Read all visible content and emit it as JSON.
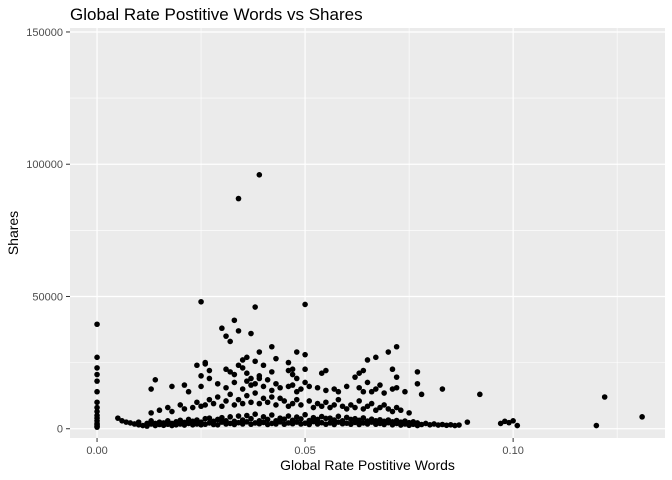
{
  "chart_data": {
    "type": "scatter",
    "title": "Global Rate Postitive Words vs Shares",
    "xlabel": "Global Rate Postitive Words",
    "ylabel": "Shares",
    "xlim": [
      -0.0065,
      0.1365
    ],
    "ylim": [
      -3500,
      151500
    ],
    "x_ticks": [
      0.0,
      0.05,
      0.1
    ],
    "x_tick_labels": [
      "0.00",
      "0.05",
      "0.10"
    ],
    "y_ticks": [
      0,
      50000,
      100000,
      150000
    ],
    "y_tick_labels": [
      "0",
      "50000",
      "100000",
      "150000"
    ],
    "grid": true,
    "legend": "none",
    "colors": {
      "panel": "#ebebeb",
      "grid": "#ffffff",
      "point": "#000000"
    },
    "x": [
      0.0,
      0.0,
      0.0,
      0.0,
      0.0,
      0.0,
      0.0,
      0.0,
      0.0,
      0.0,
      0.0,
      0.0,
      0.0,
      0.0,
      0.0,
      0.0,
      0.005,
      0.006,
      0.007,
      0.008,
      0.009,
      0.01,
      0.01,
      0.011,
      0.012,
      0.012,
      0.013,
      0.013,
      0.014,
      0.014,
      0.015,
      0.015,
      0.016,
      0.016,
      0.017,
      0.017,
      0.018,
      0.018,
      0.019,
      0.019,
      0.02,
      0.02,
      0.021,
      0.021,
      0.022,
      0.022,
      0.023,
      0.023,
      0.024,
      0.024,
      0.025,
      0.025,
      0.026,
      0.026,
      0.027,
      0.027,
      0.028,
      0.028,
      0.029,
      0.029,
      0.03,
      0.03,
      0.031,
      0.031,
      0.032,
      0.032,
      0.033,
      0.033,
      0.034,
      0.034,
      0.035,
      0.035,
      0.036,
      0.036,
      0.037,
      0.037,
      0.038,
      0.038,
      0.039,
      0.039,
      0.04,
      0.04,
      0.041,
      0.041,
      0.042,
      0.042,
      0.043,
      0.043,
      0.044,
      0.044,
      0.045,
      0.045,
      0.046,
      0.046,
      0.047,
      0.047,
      0.048,
      0.048,
      0.049,
      0.049,
      0.05,
      0.05,
      0.051,
      0.051,
      0.052,
      0.052,
      0.053,
      0.053,
      0.054,
      0.054,
      0.055,
      0.055,
      0.056,
      0.056,
      0.057,
      0.057,
      0.058,
      0.058,
      0.059,
      0.059,
      0.06,
      0.06,
      0.061,
      0.061,
      0.062,
      0.062,
      0.063,
      0.063,
      0.064,
      0.064,
      0.065,
      0.065,
      0.066,
      0.066,
      0.067,
      0.067,
      0.068,
      0.068,
      0.069,
      0.069,
      0.07,
      0.07,
      0.071,
      0.071,
      0.072,
      0.072,
      0.073,
      0.073,
      0.074,
      0.074,
      0.075,
      0.075,
      0.076,
      0.076,
      0.077,
      0.077,
      0.078,
      0.079,
      0.08,
      0.081,
      0.082,
      0.083,
      0.084,
      0.085,
      0.086,
      0.087,
      0.013,
      0.015,
      0.017,
      0.018,
      0.02,
      0.021,
      0.023,
      0.024,
      0.025,
      0.026,
      0.027,
      0.028,
      0.029,
      0.03,
      0.031,
      0.032,
      0.033,
      0.034,
      0.035,
      0.036,
      0.037,
      0.038,
      0.039,
      0.04,
      0.041,
      0.042,
      0.043,
      0.044,
      0.045,
      0.046,
      0.047,
      0.048,
      0.049,
      0.051,
      0.052,
      0.053,
      0.054,
      0.055,
      0.056,
      0.057,
      0.058,
      0.059,
      0.06,
      0.061,
      0.062,
      0.063,
      0.064,
      0.065,
      0.066,
      0.067,
      0.068,
      0.069,
      0.07,
      0.071,
      0.072,
      0.073,
      0.075,
      0.013,
      0.014,
      0.018,
      0.021,
      0.022,
      0.025,
      0.027,
      0.029,
      0.031,
      0.033,
      0.035,
      0.036,
      0.037,
      0.038,
      0.039,
      0.04,
      0.041,
      0.042,
      0.043,
      0.044,
      0.046,
      0.047,
      0.048,
      0.049,
      0.05,
      0.051,
      0.053,
      0.055,
      0.057,
      0.058,
      0.06,
      0.063,
      0.064,
      0.065,
      0.066,
      0.067,
      0.068,
      0.069,
      0.071,
      0.072,
      0.074,
      0.077,
      0.024,
      0.025,
      0.026,
      0.03,
      0.031,
      0.032,
      0.033,
      0.034,
      0.035,
      0.036,
      0.037,
      0.038,
      0.038,
      0.039,
      0.04,
      0.042,
      0.043,
      0.046,
      0.047,
      0.048,
      0.05,
      0.054,
      0.055,
      0.064,
      0.065,
      0.067,
      0.07,
      0.072,
      0.077,
      0.083,
      0.025,
      0.026,
      0.027,
      0.031,
      0.032,
      0.033,
      0.034,
      0.035,
      0.036,
      0.037,
      0.039,
      0.042,
      0.046,
      0.047,
      0.048,
      0.05,
      0.062,
      0.063,
      0.071,
      0.072,
      0.034,
      0.039,
      0.05,
      0.078,
      0.089,
      0.092,
      0.097,
      0.098,
      0.099,
      0.1,
      0.101,
      0.12,
      0.122,
      0.131
    ],
    "y": [
      39500,
      27000,
      23000,
      20500,
      18000,
      14000,
      10000,
      8000,
      6500,
      5000,
      4000,
      3000,
      2000,
      1500,
      1000,
      600,
      4000,
      3000,
      2500,
      2200,
      1800,
      1500,
      2500,
      1200,
      2000,
      1000,
      1800,
      3000,
      2000,
      1200,
      2500,
      1600,
      2200,
      1300,
      3000,
      1700,
      2000,
      1200,
      2600,
      1500,
      1800,
      3200,
      2400,
      1400,
      2000,
      3500,
      1500,
      2800,
      1800,
      3300,
      1500,
      2500,
      3800,
      1700,
      2200,
      4000,
      1600,
      2800,
      3500,
      1500,
      2500,
      4200,
      1800,
      3000,
      2000,
      4500,
      1600,
      2800,
      2300,
      4800,
      1800,
      3300,
      2600,
      5000,
      1700,
      3800,
      2200,
      5500,
      1900,
      3000,
      2400,
      4500,
      1600,
      3500,
      2000,
      5200,
      1800,
      3000,
      2600,
      4000,
      1700,
      3600,
      2200,
      4800,
      1900,
      3200,
      2500,
      4400,
      1800,
      3700,
      2100,
      5300,
      1600,
      3100,
      2700,
      4200,
      1800,
      3500,
      2300,
      4600,
      1700,
      3900,
      2200,
      4000,
      1600,
      3300,
      2500,
      4700,
      1900,
      3000,
      2100,
      4300,
      1700,
      3500,
      2400,
      3800,
      1600,
      3200,
      2200,
      4100,
      1800,
      2900,
      2500,
      3600,
      1700,
      3000,
      2000,
      3400,
      1600,
      2800,
      2300,
      3300,
      1500,
      2600,
      2000,
      3100,
      1400,
      2500,
      1800,
      2900,
      1300,
      2300,
      1700,
      2600,
      1200,
      2200,
      1600,
      2000,
      1500,
      1800,
      1400,
      1600,
      1300,
      1500,
      1200,
      1400,
      6000,
      7000,
      8000,
      6500,
      9000,
      7500,
      8000,
      10000,
      8500,
      9000,
      11000,
      9500,
      12000,
      8500,
      10500,
      13000,
      9000,
      11000,
      9500,
      12500,
      10000,
      13500,
      9500,
      11500,
      10000,
      12000,
      9000,
      11500,
      10500,
      8500,
      9500,
      11000,
      9000,
      10500,
      8000,
      9500,
      8500,
      10000,
      8000,
      9000,
      11000,
      8500,
      7500,
      9000,
      8000,
      10500,
      7500,
      8500,
      9500,
      7000,
      8000,
      9000,
      7500,
      6500,
      8000,
      7000,
      6000,
      15000,
      18500,
      16000,
      16500,
      14000,
      16000,
      19000,
      17000,
      15500,
      17500,
      15000,
      18000,
      16500,
      17000,
      19000,
      16000,
      18500,
      14500,
      17000,
      15500,
      16000,
      16500,
      14000,
      15000,
      17500,
      16000,
      15500,
      14500,
      15000,
      14000,
      16000,
      15500,
      14000,
      17500,
      14000,
      15000,
      16500,
      13500,
      15000,
      15500,
      14000,
      17000,
      24000,
      48000,
      24500,
      38000,
      35000,
      33000,
      41000,
      37000,
      26000,
      27000,
      36000,
      25500,
      46000,
      29000,
      24000,
      31000,
      26500,
      25000,
      22500,
      29000,
      28000,
      21000,
      22000,
      22000,
      26000,
      27000,
      29000,
      31000,
      21500,
      15000,
      20000,
      25000,
      22000,
      22500,
      21500,
      20500,
      24000,
      23000,
      21000,
      19000,
      20000,
      21500,
      22000,
      20500,
      19000,
      22500,
      19500,
      21000,
      22500,
      19500,
      87000,
      96000,
      47000,
      13000,
      2500,
      13000,
      2000,
      2800,
      2300,
      3000,
      1200,
      1200,
      12000,
      4500
    ]
  }
}
